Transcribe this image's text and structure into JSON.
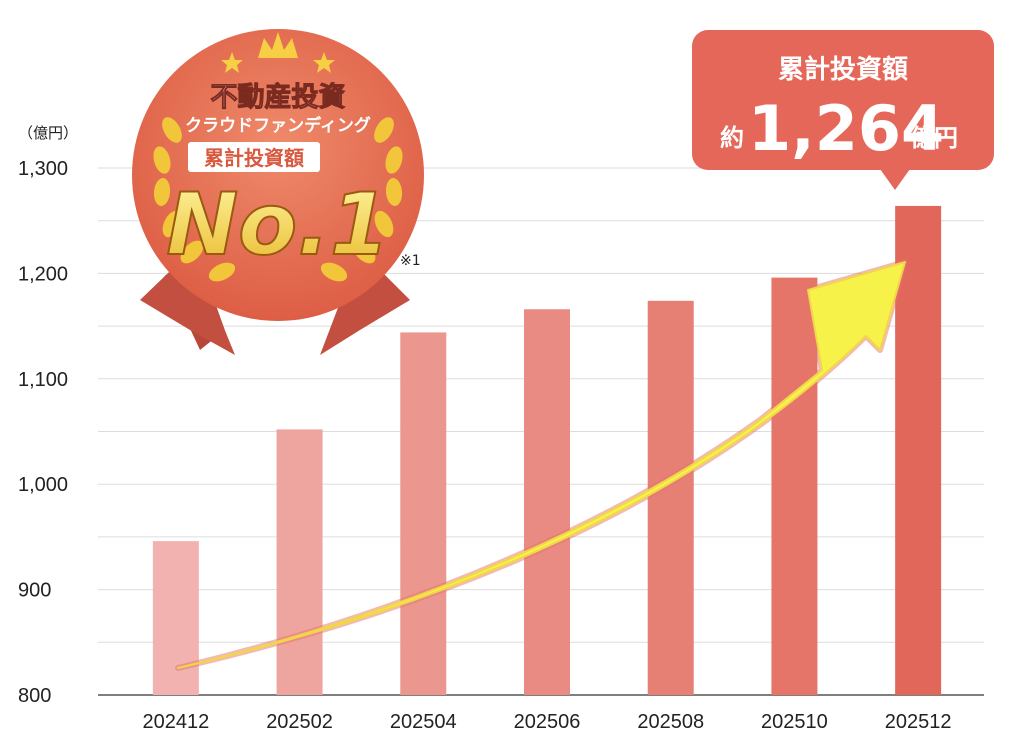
{
  "chart_data": {
    "type": "bar",
    "unit_label": "（億円）",
    "categories": [
      "202412",
      "202502",
      "202504",
      "202506",
      "202508",
      "202510",
      "202512"
    ],
    "values": [
      946,
      1052,
      1144,
      1166,
      1174,
      1196,
      1264
    ],
    "ylim": [
      800,
      1300
    ],
    "yticks": [
      800,
      900,
      1000,
      1100,
      1200,
      1300
    ],
    "ytick_labels": [
      "800",
      "900",
      "1,000",
      "1,100",
      "1,200",
      "1,300"
    ],
    "grid": true,
    "bar_colors": [
      "#f2b3b0",
      "#eea59f",
      "#eb9790",
      "#e98b82",
      "#e67f74",
      "#e47568",
      "#e0675a"
    ],
    "trend_arrow_color": "#f7f24a"
  },
  "badge": {
    "line1": "不動産投資",
    "line2": "クラウドファンディング",
    "line3": "累計投資額",
    "rank": "No.1",
    "footnote": "※1"
  },
  "callout": {
    "title": "累計投資額",
    "prefix": "約",
    "amount": "1,264",
    "suffix": "億円"
  }
}
